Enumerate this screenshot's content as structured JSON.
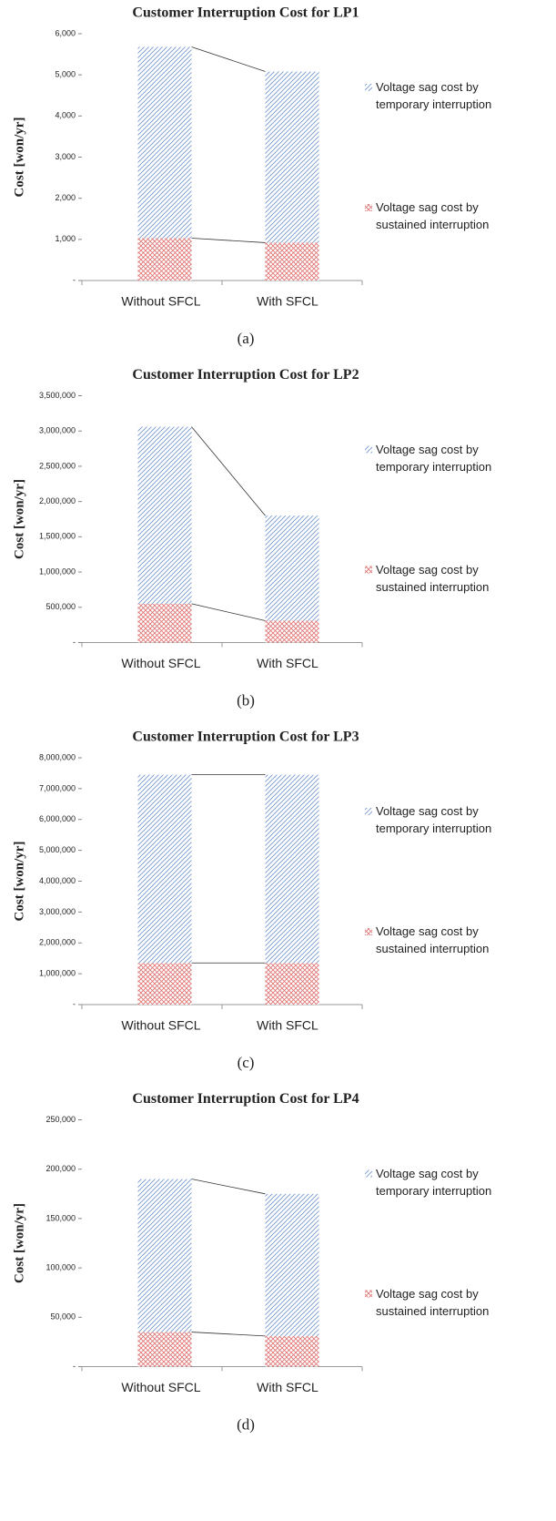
{
  "chart_data": [
    {
      "type": "stacked_bar",
      "title": "Customer Interruption Cost for LP1",
      "ylabel": "Cost [won/yr]",
      "caption": "(a)",
      "categories": [
        "Without SFCL",
        "With SFCL"
      ],
      "series": [
        {
          "name": "Voltage sag cost by sustained interruption",
          "color": "#e07070",
          "values": [
            1030,
            920
          ]
        },
        {
          "name": "Voltage sag cost by temporary interruption",
          "color": "#6f95cf",
          "values": [
            4650,
            4160
          ]
        }
      ],
      "ylim": [
        0,
        6000
      ],
      "yticks": [
        {
          "value": 0,
          "label": "-"
        },
        {
          "value": 1000,
          "label": "1,000"
        },
        {
          "value": 2000,
          "label": "2,000"
        },
        {
          "value": 3000,
          "label": "3,000"
        },
        {
          "value": 4000,
          "label": "4,000"
        },
        {
          "value": 5000,
          "label": "5,000"
        },
        {
          "value": 6000,
          "label": "6,000"
        }
      ]
    },
    {
      "type": "stacked_bar",
      "title": "Customer Interruption Cost for LP2",
      "ylabel": "Cost [won/yr]",
      "caption": "(b)",
      "categories": [
        "Without SFCL",
        "With SFCL"
      ],
      "series": [
        {
          "name": "Voltage sag cost by sustained interruption",
          "color": "#e07070",
          "values": [
            550000,
            310000
          ]
        },
        {
          "name": "Voltage sag cost by temporary interruption",
          "color": "#6f95cf",
          "values": [
            2510000,
            1490000
          ]
        }
      ],
      "ylim": [
        0,
        3500000
      ],
      "yticks": [
        {
          "value": 0,
          "label": "-"
        },
        {
          "value": 500000,
          "label": "500,000"
        },
        {
          "value": 1000000,
          "label": "1,000,000"
        },
        {
          "value": 1500000,
          "label": "1,500,000"
        },
        {
          "value": 2000000,
          "label": "2,000,000"
        },
        {
          "value": 2500000,
          "label": "2,500,000"
        },
        {
          "value": 3000000,
          "label": "3,000,000"
        },
        {
          "value": 3500000,
          "label": "3,500,000"
        }
      ]
    },
    {
      "type": "stacked_bar",
      "title": "Customer Interruption Cost for LP3",
      "ylabel": "Cost [won/yr]",
      "caption": "(c)",
      "categories": [
        "Without SFCL",
        "With SFCL"
      ],
      "series": [
        {
          "name": "Voltage sag cost by sustained interruption",
          "color": "#e07070",
          "values": [
            1350000,
            1350000
          ]
        },
        {
          "name": "Voltage sag cost by temporary interruption",
          "color": "#6f95cf",
          "values": [
            6100000,
            6100000
          ]
        }
      ],
      "ylim": [
        0,
        8000000
      ],
      "yticks": [
        {
          "value": 0,
          "label": "-"
        },
        {
          "value": 1000000,
          "label": "1,000,000"
        },
        {
          "value": 2000000,
          "label": "2,000,000"
        },
        {
          "value": 3000000,
          "label": "3,000,000"
        },
        {
          "value": 4000000,
          "label": "4,000,000"
        },
        {
          "value": 5000000,
          "label": "5,000,000"
        },
        {
          "value": 6000000,
          "label": "6,000,000"
        },
        {
          "value": 7000000,
          "label": "7,000,000"
        },
        {
          "value": 8000000,
          "label": "8,000,000"
        }
      ]
    },
    {
      "type": "stacked_bar",
      "title": "Customer Interruption Cost for LP4",
      "ylabel": "Cost [won/yr]",
      "caption": "(d)",
      "categories": [
        "Without SFCL",
        "With SFCL"
      ],
      "series": [
        {
          "name": "Voltage sag cost by sustained interruption",
          "color": "#e07070",
          "values": [
            35000,
            31000
          ]
        },
        {
          "name": "Voltage sag cost by temporary interruption",
          "color": "#6f95cf",
          "values": [
            155000,
            144000
          ]
        }
      ],
      "ylim": [
        0,
        250000
      ],
      "yticks": [
        {
          "value": 0,
          "label": "-"
        },
        {
          "value": 50000,
          "label": "50,000"
        },
        {
          "value": 100000,
          "label": "100,000"
        },
        {
          "value": 150000,
          "label": "150,000"
        },
        {
          "value": 200000,
          "label": "200,000"
        },
        {
          "value": 250000,
          "label": "250,000"
        }
      ]
    }
  ]
}
